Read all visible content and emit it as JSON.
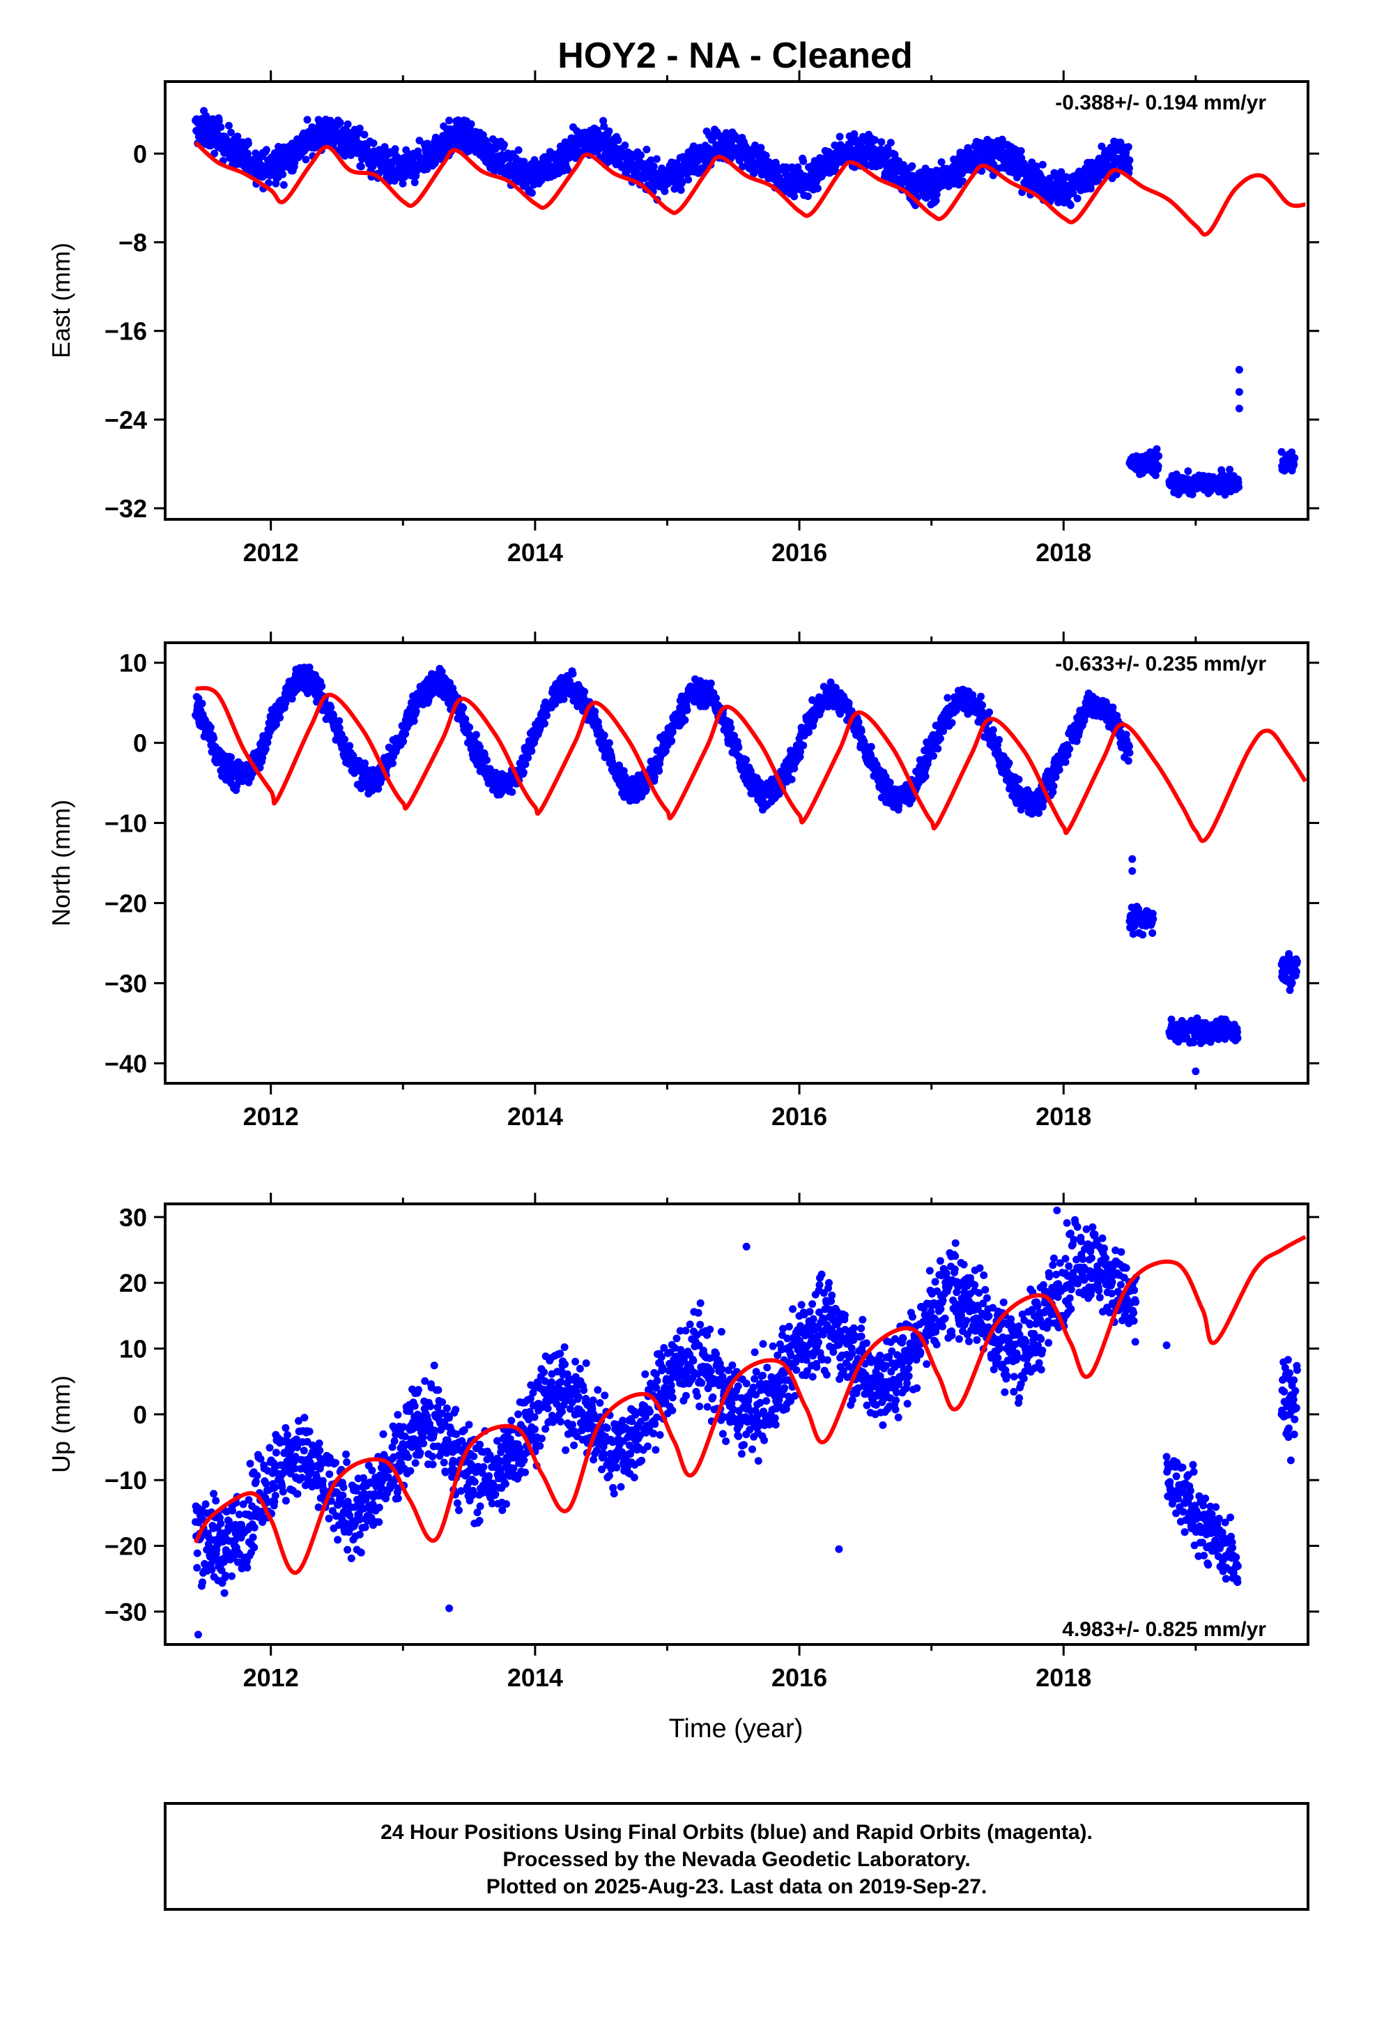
{
  "chart_data": {
    "type": "scatter",
    "title": "HOY2  - NA - Cleaned",
    "xlabel": "Time (year)",
    "xlim": [
      2011.2,
      2019.85
    ],
    "xticks": [
      2012,
      2014,
      2016,
      2018
    ],
    "colors": {
      "final_orbits": "#0000ff",
      "rapid_orbits": "#ff00ff",
      "model": "#ff0000",
      "frame": "#000000"
    },
    "panels": [
      {
        "name": "east",
        "ylabel": "East (mm)",
        "ylim": [
          -33,
          6.5
        ],
        "yticks": [
          0,
          -8,
          -16,
          -24,
          -32
        ],
        "rate_text": "-0.388+/- 0.194 mm/yr",
        "rate_position": "top-right",
        "series": [
          {
            "kind": "points",
            "segments": [
              {
                "t": [
                  2011.43,
                  2018.5
                ],
                "offset": 0.6,
                "slope": -0.35,
                "amp": 1.6,
                "phase": 0.45,
                "noise": 1.4
              },
              {
                "t": [
                  2018.5,
                  2018.72
                ],
                "offset": -28.0,
                "slope": 0,
                "amp": 0,
                "phase": 0,
                "noise": 0.9
              },
              {
                "t": [
                  2018.8,
                  2019.33
                ],
                "offset": -29.8,
                "slope": 0,
                "amp": 0,
                "phase": 0,
                "noise": 0.8
              },
              {
                "t": [
                  2019.65,
                  2019.75
                ],
                "offset": -27.9,
                "slope": 0,
                "amp": 0,
                "phase": 0,
                "noise": 0.8
              }
            ],
            "outliers": [
              {
                "x": 2019.33,
                "y": -19.5
              },
              {
                "x": 2019.33,
                "y": -21.5
              },
              {
                "x": 2019.33,
                "y": -23.0
              }
            ]
          },
          {
            "kind": "model",
            "x": [
              2011.43,
              2011.6,
              2011.8,
              2012.0,
              2012.1,
              2012.3,
              2012.43,
              2012.6,
              2012.8,
              2013.0,
              2013.1,
              2013.3,
              2013.4,
              2013.6,
              2013.8,
              2014.0,
              2014.1,
              2014.3,
              2014.4,
              2014.6,
              2014.8,
              2015.0,
              2015.1,
              2015.3,
              2015.4,
              2015.6,
              2015.8,
              2016.0,
              2016.1,
              2016.3,
              2016.4,
              2016.6,
              2016.8,
              2017.0,
              2017.1,
              2017.3,
              2017.4,
              2017.6,
              2017.8,
              2018.0,
              2018.1,
              2018.3,
              2018.4,
              2018.6,
              2018.8,
              2019.0,
              2019.1,
              2019.3,
              2019.5,
              2019.7,
              2019.83
            ],
            "y": [
              1.0,
              -0.8,
              -1.8,
              -3.3,
              -4.3,
              -1.0,
              0.6,
              -1.5,
              -2.0,
              -4.3,
              -4.4,
              -1.0,
              0.3,
              -1.6,
              -2.5,
              -4.5,
              -4.6,
              -1.4,
              -0.1,
              -1.8,
              -2.8,
              -5.0,
              -5.0,
              -1.6,
              -0.3,
              -2.0,
              -3.0,
              -5.2,
              -5.3,
              -1.8,
              -0.8,
              -2.3,
              -3.4,
              -5.5,
              -5.6,
              -2.2,
              -1.1,
              -2.6,
              -3.8,
              -5.8,
              -5.9,
              -2.6,
              -1.5,
              -3.0,
              -4.2,
              -6.5,
              -7.1,
              -3.2,
              -2.0,
              -4.5,
              -4.6
            ]
          }
        ]
      },
      {
        "name": "north",
        "ylabel": "North (mm)",
        "ylim": [
          -42.5,
          12.5
        ],
        "yticks": [
          10,
          0,
          -10,
          -20,
          -30,
          -40
        ],
        "rate_text": "-0.633+/- 0.235 mm/yr",
        "rate_position": "top-right",
        "series": [
          {
            "kind": "points",
            "segments": [
              {
                "t": [
                  2011.43,
                  2018.5
                ],
                "offset": 2.3,
                "slope": -0.55,
                "amp": 6.2,
                "phase": 0.25,
                "noise": 1.5
              },
              {
                "t": [
                  2018.5,
                  2018.68
                ],
                "offset": -22.0,
                "slope": 0,
                "amp": 0,
                "phase": 0,
                "noise": 1.6
              },
              {
                "t": [
                  2018.8,
                  2019.32
                ],
                "offset": -36.0,
                "slope": 0,
                "amp": 0,
                "phase": 0,
                "noise": 1.3
              },
              {
                "t": [
                  2019.65,
                  2019.77
                ],
                "offset": -28.5,
                "slope": 0,
                "amp": 0,
                "phase": 0,
                "noise": 2.0
              }
            ],
            "outliers": [
              {
                "x": 2018.52,
                "y": -14.5
              },
              {
                "x": 2018.52,
                "y": -16.0
              },
              {
                "x": 2019.0,
                "y": -41.0
              }
            ]
          },
          {
            "kind": "model",
            "x": [
              2011.43,
              2011.6,
              2011.8,
              2012.0,
              2012.05,
              2012.3,
              2012.45,
              2012.7,
              2012.9,
              2013.0,
              2013.05,
              2013.3,
              2013.45,
              2013.7,
              2013.9,
              2014.0,
              2014.05,
              2014.3,
              2014.45,
              2014.7,
              2014.9,
              2015.0,
              2015.05,
              2015.3,
              2015.45,
              2015.7,
              2015.9,
              2016.0,
              2016.05,
              2016.3,
              2016.45,
              2016.7,
              2016.9,
              2017.0,
              2017.05,
              2017.3,
              2017.45,
              2017.7,
              2017.9,
              2018.0,
              2018.05,
              2018.3,
              2018.45,
              2018.7,
              2018.9,
              2019.0,
              2019.1,
              2019.4,
              2019.55,
              2019.7,
              2019.83
            ],
            "y": [
              6.8,
              6.0,
              -1.0,
              -6.0,
              -7.0,
              2.0,
              6.0,
              1.5,
              -5.0,
              -7.5,
              -7.5,
              0.5,
              5.5,
              1.0,
              -5.5,
              -8.0,
              -8.2,
              0.0,
              5.0,
              0.5,
              -6.0,
              -8.5,
              -8.8,
              -0.5,
              4.5,
              0.0,
              -6.5,
              -9.0,
              -9.3,
              -1.0,
              3.8,
              -0.5,
              -7.0,
              -9.8,
              -10.0,
              -1.5,
              3.0,
              -1.0,
              -7.5,
              -10.5,
              -10.5,
              -2.0,
              2.3,
              -2.5,
              -8.0,
              -11.0,
              -11.5,
              -1.0,
              1.5,
              -1.5,
              -4.8
            ]
          }
        ]
      },
      {
        "name": "up",
        "ylabel": "Up (mm)",
        "ylim": [
          -35,
          32
        ],
        "yticks": [
          30,
          20,
          10,
          0,
          -10,
          -20,
          -30
        ],
        "rate_text": "4.983+/- 0.825 mm/yr",
        "rate_position": "bottom-right",
        "series": [
          {
            "kind": "points",
            "segments": [
              {
                "t": [
                  2011.43,
                  2018.55
                ],
                "offset": -15.5,
                "slope": 4.98,
                "amp": 5.5,
                "phase": 0.15,
                "noise": 6.0
              },
              {
                "t": [
                  2018.78,
                  2019.32
                ],
                "offset": -10.0,
                "slope": -24.0,
                "amp": 0,
                "phase": 0,
                "noise": 5.0
              },
              {
                "t": [
                  2019.65,
                  2019.77
                ],
                "offset": 3.0,
                "slope": 0,
                "amp": 0,
                "phase": 0,
                "noise": 5.5
              }
            ],
            "outliers": [
              {
                "x": 2011.45,
                "y": -33.5
              },
              {
                "x": 2013.35,
                "y": -29.5
              },
              {
                "x": 2016.3,
                "y": -20.5
              },
              {
                "x": 2015.6,
                "y": 25.5
              },
              {
                "x": 2017.95,
                "y": 31.0
              },
              {
                "x": 2018.78,
                "y": 10.5
              },
              {
                "x": 2019.72,
                "y": -7.0
              }
            ]
          },
          {
            "kind": "model",
            "x": [
              2011.43,
              2011.55,
              2011.85,
              2012.0,
              2012.2,
              2012.5,
              2012.85,
              2013.05,
              2013.25,
              2013.5,
              2013.85,
              2014.05,
              2014.25,
              2014.5,
              2014.85,
              2015.05,
              2015.2,
              2015.5,
              2015.85,
              2016.05,
              2016.2,
              2016.5,
              2016.85,
              2017.05,
              2017.2,
              2017.5,
              2017.85,
              2018.05,
              2018.2,
              2018.5,
              2018.85,
              2019.05,
              2019.15,
              2019.45,
              2019.65,
              2019.83
            ],
            "y": [
              -19.5,
              -15.5,
              -12.0,
              -16.0,
              -24.0,
              -10.0,
              -7.0,
              -13.0,
              -19.0,
              -5.0,
              -2.0,
              -9.0,
              -14.5,
              -1.0,
              3.0,
              -4.0,
              -9.0,
              5.0,
              8.0,
              1.0,
              -4.0,
              9.0,
              13.0,
              6.0,
              1.0,
              14.0,
              18.0,
              11.0,
              6.0,
              20.0,
              23.0,
              16.0,
              11.0,
              22.0,
              25.0,
              27.0
            ]
          }
        ]
      }
    ]
  },
  "footer": {
    "line1": "24 Hour Positions Using Final Orbits (blue) and Rapid Orbits (magenta).",
    "line2": "Processed by the Nevada Geodetic Laboratory.",
    "line3": "Plotted on 2025-Aug-23. Last data on 2019-Sep-27."
  }
}
